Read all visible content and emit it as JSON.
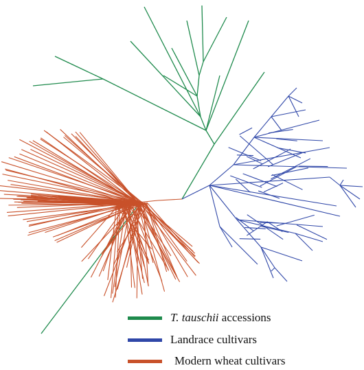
{
  "legend": {
    "items": [
      {
        "italic": "T. tauschii",
        "text": " accessions",
        "color": "#1e8a4c"
      },
      {
        "italic": "",
        "text": "Landrace cultivars",
        "color": "#2f47a8"
      },
      {
        "italic": "",
        "text": "Modern wheat cultivars",
        "color": "#c8512a"
      }
    ]
  },
  "colors": {
    "tauschii": "#1e8a4c",
    "landrace": "#2f47a8",
    "modern": "#c8512a"
  }
}
